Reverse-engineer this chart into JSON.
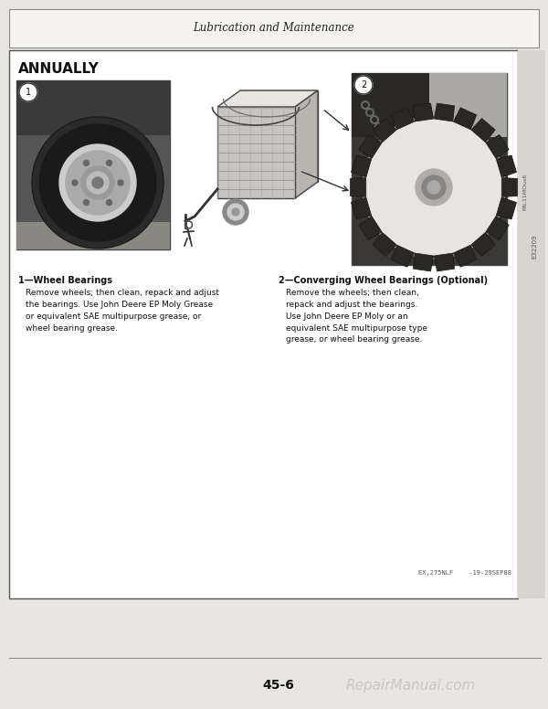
{
  "page_bg": "#e8e6e2",
  "content_bg": "#ffffff",
  "header_text": "Lubrication and Maintenance",
  "section_title": "ANNUALLY",
  "desc1_title": "1—Wheel Bearings",
  "desc1_body": "Remove wheels; then clean, repack and adjust\nthe bearings. Use John Deere EP Moly Grease\nor equivalent SAE multipurpose grease, or\nwheel bearing grease.",
  "desc2_title": "2—Converging Wheel Bearings (Optional)",
  "desc2_body": "Remove the wheels; then clean,\nrepack and adjust the bearings.\nUse John Deere EP Moly or an\nequivalent SAE multipurpose type\ngrease, or wheel bearing grease.",
  "footer_page": "45-6",
  "footer_watermark": "RepairManual.com",
  "code_text": "EX,275NLF    -19-29SEP88",
  "img1_label": "1",
  "img2_label": "2",
  "side_text1": "RN,11MOus6",
  "side_text2": "E32209"
}
